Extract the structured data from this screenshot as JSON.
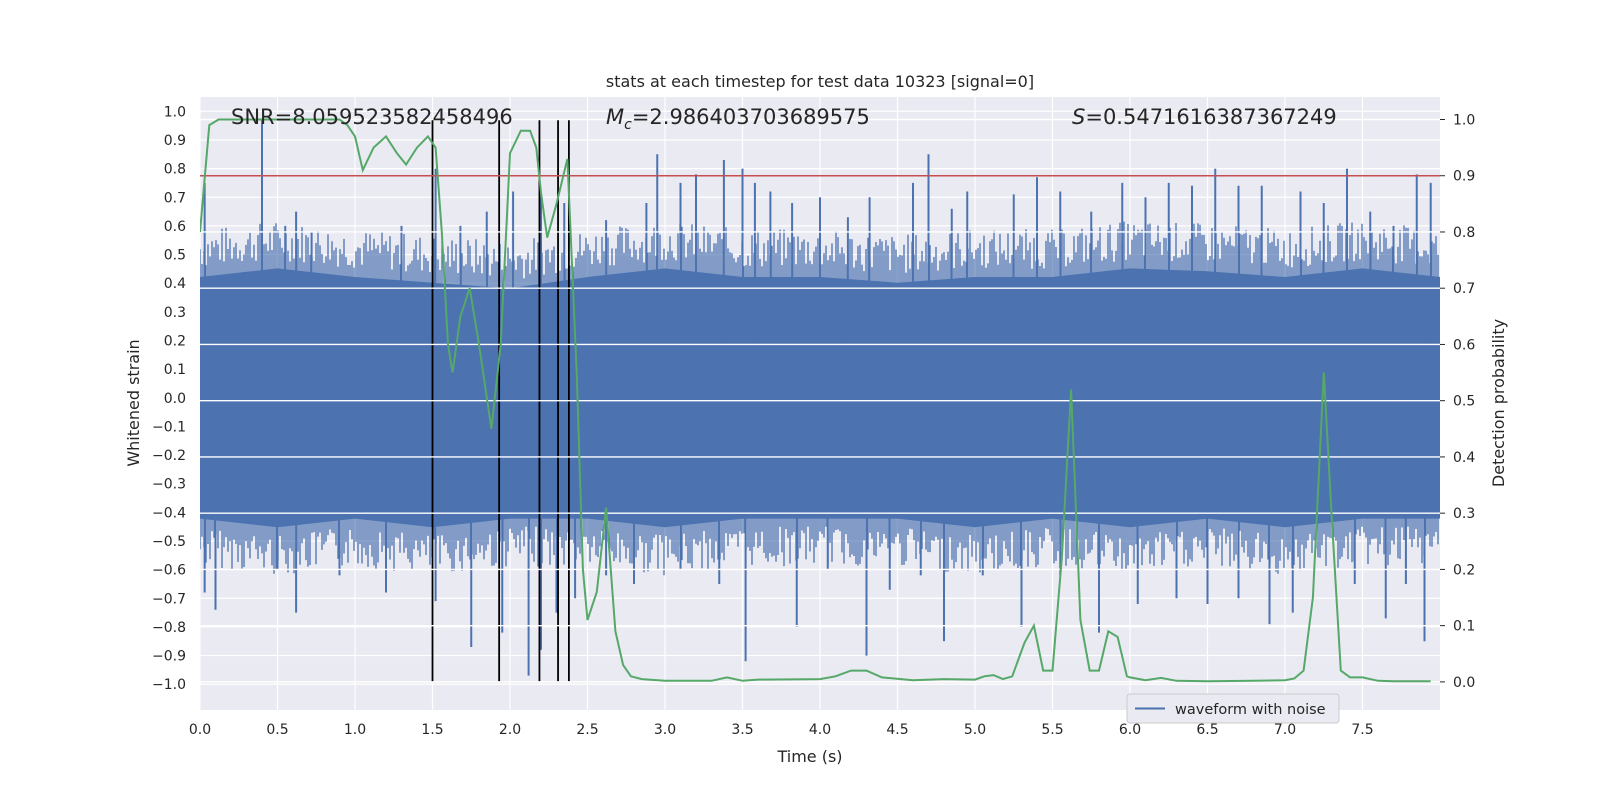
{
  "chart_data": {
    "type": "line",
    "title": "stats at each timestep for test data 10323 [signal=0]",
    "xlabel": "Time (s)",
    "ylabel_left": "Whitened strain",
    "ylabel_right": "Detection probability",
    "xlim": [
      0,
      8
    ],
    "ylim_left": [
      -1.09,
      1.05
    ],
    "ylim_right": [
      -0.05,
      1.04
    ],
    "x_ticks": [
      "0.0",
      "0.5",
      "1.0",
      "1.5",
      "2.0",
      "2.5",
      "3.0",
      "3.5",
      "4.0",
      "4.5",
      "5.0",
      "5.5",
      "6.0",
      "6.5",
      "7.0",
      "7.5"
    ],
    "y_ticks_left": [
      "1.0",
      "0.9",
      "0.8",
      "0.7",
      "0.6",
      "0.5",
      "0.4",
      "0.3",
      "0.2",
      "0.1",
      "0.0",
      "−0.1",
      "−0.2",
      "−0.3",
      "−0.4",
      "−0.5",
      "−0.6",
      "−0.7",
      "−0.8",
      "−0.9",
      "−1.0"
    ],
    "y_ticks_right": [
      "1.0",
      "0.9",
      "0.8",
      "0.7",
      "0.6",
      "0.5",
      "0.4",
      "0.3",
      "0.2",
      "0.1",
      "0.0"
    ],
    "annotations": {
      "snr": "SNR=8.059523582458496",
      "mc_symbol": "M",
      "mc_sub": "c",
      "mc_value": "=2.986403703689575",
      "s_symbol": "S",
      "s_value": "=0.5471616387367249"
    },
    "legend": [
      "waveform with noise"
    ],
    "threshold": 0.9,
    "vlines": [
      1.5,
      1.93,
      2.19,
      2.31,
      2.38
    ],
    "series": [
      {
        "name": "waveform with noise",
        "axis": "left",
        "color": "#4c72b0",
        "envelope": {
          "x": [
            0,
            0.5,
            1,
            1.5,
            2,
            2.5,
            3,
            3.5,
            4,
            4.5,
            5,
            5.5,
            6,
            6.5,
            7,
            7.5,
            8
          ],
          "top": [
            0.42,
            0.45,
            0.42,
            0.4,
            0.38,
            0.42,
            0.45,
            0.42,
            0.42,
            0.4,
            0.42,
            0.42,
            0.45,
            0.44,
            0.42,
            0.45,
            0.42
          ],
          "bottom": [
            -0.42,
            -0.45,
            -0.42,
            -0.45,
            -0.42,
            -0.42,
            -0.45,
            -0.42,
            -0.42,
            -0.42,
            -0.45,
            -0.42,
            -0.45,
            -0.42,
            -0.45,
            -0.42,
            -0.42
          ]
        },
        "spikes": [
          [
            0.03,
            0.75
          ],
          [
            0.4,
            0.97
          ],
          [
            0.55,
            0.6
          ],
          [
            0.62,
            0.65
          ],
          [
            0.72,
            0.58
          ],
          [
            1.3,
            0.6
          ],
          [
            1.52,
            0.8
          ],
          [
            1.68,
            0.6
          ],
          [
            1.85,
            0.65
          ],
          [
            2.02,
            0.72
          ],
          [
            2.2,
            0.7
          ],
          [
            2.35,
            0.68
          ],
          [
            2.62,
            0.62
          ],
          [
            2.88,
            0.68
          ],
          [
            2.95,
            0.85
          ],
          [
            3.1,
            0.75
          ],
          [
            3.2,
            0.78
          ],
          [
            3.38,
            0.83
          ],
          [
            3.5,
            0.8
          ],
          [
            3.58,
            0.75
          ],
          [
            3.68,
            0.72
          ],
          [
            3.82,
            0.68
          ],
          [
            4.0,
            0.7
          ],
          [
            4.18,
            0.63
          ],
          [
            4.32,
            0.7
          ],
          [
            4.6,
            0.75
          ],
          [
            4.7,
            0.85
          ],
          [
            4.85,
            0.66
          ],
          [
            4.95,
            0.72
          ],
          [
            5.25,
            0.71
          ],
          [
            5.4,
            0.77
          ],
          [
            5.55,
            0.72
          ],
          [
            5.75,
            0.65
          ],
          [
            5.95,
            0.75
          ],
          [
            6.1,
            0.7
          ],
          [
            6.25,
            0.75
          ],
          [
            6.4,
            0.74
          ],
          [
            6.55,
            0.8
          ],
          [
            6.7,
            0.74
          ],
          [
            6.85,
            0.74
          ],
          [
            7.1,
            0.72
          ],
          [
            7.25,
            0.68
          ],
          [
            7.4,
            0.8
          ],
          [
            7.55,
            0.65
          ],
          [
            7.7,
            0.6
          ],
          [
            7.85,
            0.78
          ],
          [
            7.94,
            0.75
          ],
          [
            0.03,
            -0.68
          ],
          [
            0.1,
            -0.74
          ],
          [
            0.5,
            -0.6
          ],
          [
            0.62,
            -0.75
          ],
          [
            0.9,
            -0.62
          ],
          [
            1.2,
            -0.68
          ],
          [
            1.52,
            -0.71
          ],
          [
            1.75,
            -0.87
          ],
          [
            1.95,
            -0.82
          ],
          [
            2.12,
            -0.97
          ],
          [
            2.2,
            -0.88
          ],
          [
            2.3,
            -0.75
          ],
          [
            2.42,
            -0.7
          ],
          [
            2.62,
            -0.62
          ],
          [
            2.8,
            -0.65
          ],
          [
            3.1,
            -0.6
          ],
          [
            3.35,
            -0.65
          ],
          [
            3.52,
            -0.92
          ],
          [
            3.85,
            -0.8
          ],
          [
            4.05,
            -0.6
          ],
          [
            4.3,
            -0.9
          ],
          [
            4.45,
            -0.67
          ],
          [
            4.65,
            -0.62
          ],
          [
            4.8,
            -0.85
          ],
          [
            5.05,
            -0.62
          ],
          [
            5.3,
            -0.8
          ],
          [
            5.55,
            -0.62
          ],
          [
            5.8,
            -0.82
          ],
          [
            6.05,
            -0.72
          ],
          [
            6.3,
            -0.7
          ],
          [
            6.5,
            -0.72
          ],
          [
            6.7,
            -0.7
          ],
          [
            6.9,
            -0.79
          ],
          [
            7.05,
            -0.75
          ],
          [
            7.45,
            -0.65
          ],
          [
            7.65,
            -0.77
          ],
          [
            7.78,
            -0.65
          ],
          [
            7.9,
            -0.85
          ]
        ]
      },
      {
        "name": "detection probability",
        "axis": "right",
        "color": "#55a868",
        "x": [
          0.0,
          0.06,
          0.12,
          0.2,
          0.4,
          0.6,
          0.9,
          0.95,
          1.0,
          1.05,
          1.12,
          1.2,
          1.27,
          1.33,
          1.4,
          1.47,
          1.52,
          1.56,
          1.6,
          1.63,
          1.68,
          1.74,
          1.8,
          1.88,
          1.94,
          2.0,
          2.07,
          2.13,
          2.17,
          2.2,
          2.24,
          2.3,
          2.37,
          2.43,
          2.47,
          2.5,
          2.56,
          2.62,
          2.68,
          2.73,
          2.78,
          2.85,
          3.0,
          3.3,
          3.4,
          3.5,
          3.6,
          4.0,
          4.1,
          4.2,
          4.3,
          4.4,
          4.6,
          4.8,
          5.0,
          5.06,
          5.12,
          5.18,
          5.24,
          5.32,
          5.38,
          5.44,
          5.5,
          5.56,
          5.62,
          5.68,
          5.74,
          5.8,
          5.86,
          5.92,
          5.98,
          6.0,
          6.1,
          6.2,
          6.3,
          6.5,
          6.8,
          7.0,
          7.06,
          7.12,
          7.18,
          7.25,
          7.3,
          7.36,
          7.42,
          7.5,
          7.6,
          7.7,
          7.94
        ],
        "values": [
          0.8,
          0.99,
          1.0,
          1.0,
          1.0,
          1.0,
          1.0,
          0.99,
          0.97,
          0.91,
          0.95,
          0.97,
          0.94,
          0.92,
          0.95,
          0.97,
          0.95,
          0.8,
          0.6,
          0.55,
          0.65,
          0.7,
          0.6,
          0.45,
          0.6,
          0.94,
          0.98,
          0.98,
          0.95,
          0.87,
          0.79,
          0.85,
          0.93,
          0.55,
          0.2,
          0.11,
          0.16,
          0.31,
          0.09,
          0.03,
          0.01,
          0.005,
          0.002,
          0.002,
          0.008,
          0.002,
          0.004,
          0.005,
          0.01,
          0.02,
          0.02,
          0.008,
          0.003,
          0.005,
          0.004,
          0.01,
          0.012,
          0.005,
          0.01,
          0.07,
          0.1,
          0.02,
          0.02,
          0.22,
          0.52,
          0.11,
          0.02,
          0.02,
          0.09,
          0.08,
          0.01,
          0.008,
          0.003,
          0.007,
          0.002,
          0.001,
          0.002,
          0.003,
          0.006,
          0.02,
          0.15,
          0.55,
          0.3,
          0.02,
          0.008,
          0.008,
          0.002,
          0.001,
          0.001
        ]
      }
    ]
  }
}
